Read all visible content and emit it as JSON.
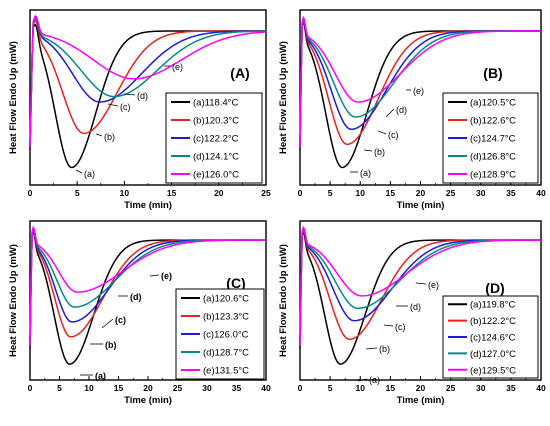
{
  "panels": [
    {
      "letter": "(A)",
      "xlabel": "Time (min)",
      "ylabel": "Heat Flow Endo Up (mW)",
      "xlim": [
        0,
        25
      ],
      "xticks": [
        0,
        5,
        10,
        15,
        20,
        25
      ],
      "legend": [
        "(a)118.4°C",
        "(b)120.3°C",
        "(c)122.2°C",
        "(d)124.1°C",
        "(e)126.0°C"
      ],
      "labels": [
        "(a)",
        "(b)",
        "(c)",
        "(d)",
        "(e)"
      ]
    },
    {
      "letter": "(B)",
      "xlabel": "Time (min)",
      "ylabel": "Heat Flow Endo Up (mW)",
      "xlim": [
        0,
        40
      ],
      "xticks": [
        0,
        5,
        10,
        15,
        20,
        25,
        30,
        35,
        40
      ],
      "legend": [
        "(a)120.5°C",
        "(b)122.6°C",
        "(c)124.7°C",
        "(d)126.8°C",
        "(e)128.9°C"
      ],
      "labels": [
        "(a)",
        "(b)",
        "(c)",
        "(d)",
        "(e)"
      ]
    },
    {
      "letter": "(C)",
      "xlabel": "Time (min)",
      "ylabel": "Heat Flow Endo Up (mW)",
      "xlim": [
        0,
        40
      ],
      "xticks": [
        0,
        5,
        10,
        15,
        20,
        25,
        30,
        35,
        40
      ],
      "legend": [
        "(a)120.6°C",
        "(b)123.3°C",
        "(c)126.0°C",
        "(d)128.7°C",
        "(e)131.5°C"
      ],
      "labels": [
        "(a)",
        "(b)",
        "(c)",
        "(d)",
        "(e)"
      ]
    },
    {
      "letter": "(D)",
      "xlabel": "Time (min)",
      "ylabel": "Heat Flow Endo Up (mW)",
      "xlim": [
        0,
        40
      ],
      "xticks": [
        0,
        5,
        10,
        15,
        20,
        25,
        30,
        35,
        40
      ],
      "legend": [
        "(a)119.8°C",
        "(b)122.2°C",
        "(c)124.6°C",
        "(d)127.0°C",
        "(e)129.5°C"
      ],
      "labels": [
        "(a)",
        "(b)",
        "(c)",
        "(d)",
        "(e)"
      ]
    }
  ],
  "colors": [
    "#000000",
    "#e8211c",
    "#1b1bd6",
    "#008b8b",
    "#ff00ff"
  ],
  "chart_data": [
    {
      "type": "line",
      "xlabel": "Time (min)",
      "ylabel": "Heat Flow Endo Up (mW)",
      "xlim": [
        0,
        25
      ],
      "series": [
        {
          "name": "(a)118.4°C",
          "peak_x": 4.4,
          "depth": 1.0
        },
        {
          "name": "(b)120.3°C",
          "peak_x": 5.7,
          "depth": 0.75
        },
        {
          "name": "(c)122.2°C",
          "peak_x": 7.4,
          "depth": 0.52
        },
        {
          "name": "(d)124.1°C",
          "peak_x": 8.9,
          "depth": 0.48
        },
        {
          "name": "(e)126.0°C",
          "peak_x": 11.0,
          "depth": 0.35
        }
      ]
    },
    {
      "type": "line",
      "xlabel": "Time (min)",
      "ylabel": "Heat Flow Endo Up (mW)",
      "xlim": [
        0,
        40
      ],
      "series": [
        {
          "name": "(a)120.5°C",
          "peak_x": 7.0,
          "depth": 1.0
        },
        {
          "name": "(b)122.6°C",
          "peak_x": 7.8,
          "depth": 0.83
        },
        {
          "name": "(c)124.7°C",
          "peak_x": 8.5,
          "depth": 0.72
        },
        {
          "name": "(d)126.8°C",
          "peak_x": 9.2,
          "depth": 0.63
        },
        {
          "name": "(e)128.9°C",
          "peak_x": 9.6,
          "depth": 0.52
        }
      ]
    },
    {
      "type": "line",
      "xlabel": "Time (min)",
      "ylabel": "Heat Flow Endo Up (mW)",
      "xlim": [
        0,
        40
      ],
      "series": [
        {
          "name": "(a)120.6°C",
          "peak_x": 6.7,
          "depth": 1.0
        },
        {
          "name": "(b)123.3°C",
          "peak_x": 6.9,
          "depth": 0.78
        },
        {
          "name": "(c)126.0°C",
          "peak_x": 7.1,
          "depth": 0.66
        },
        {
          "name": "(d)128.7°C",
          "peak_x": 7.5,
          "depth": 0.54
        },
        {
          "name": "(e)131.5°C",
          "peak_x": 8.0,
          "depth": 0.42
        }
      ]
    },
    {
      "type": "line",
      "xlabel": "Time (min)",
      "ylabel": "Heat Flow Endo Up (mW)",
      "xlim": [
        0,
        40
      ],
      "series": [
        {
          "name": "(a)119.8°C",
          "peak_x": 6.7,
          "depth": 1.0
        },
        {
          "name": "(b)122.2°C",
          "peak_x": 8.2,
          "depth": 0.8
        },
        {
          "name": "(c)124.6°C",
          "peak_x": 9.0,
          "depth": 0.65
        },
        {
          "name": "(d)127.0°C",
          "peak_x": 9.6,
          "depth": 0.55
        },
        {
          "name": "(e)129.5°C",
          "peak_x": 10.2,
          "depth": 0.45
        }
      ]
    }
  ]
}
